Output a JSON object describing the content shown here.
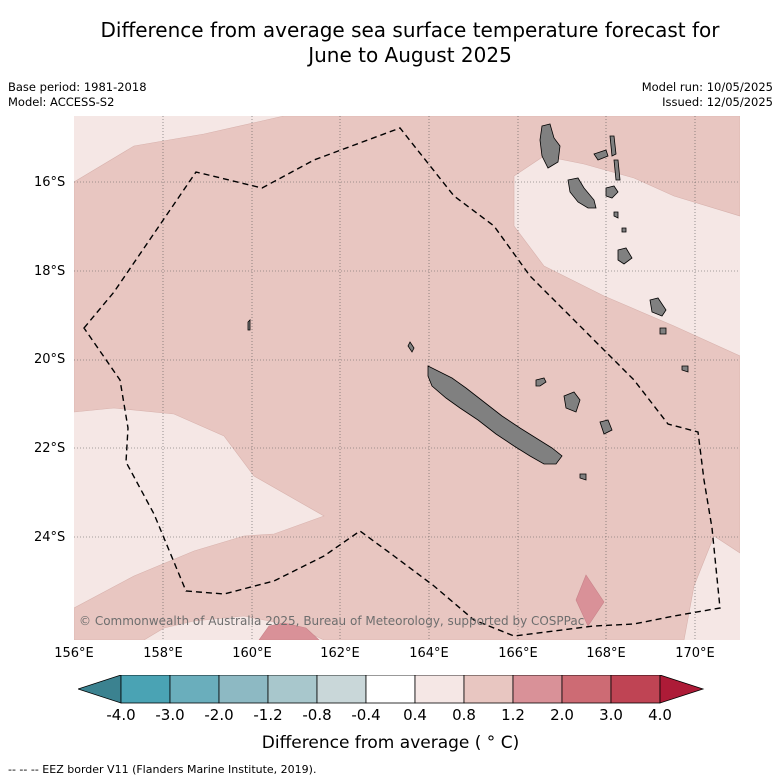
{
  "title_line1": "Difference from average sea surface temperature forecast for",
  "title_line2": "June to August 2025",
  "base_period": "Base period: 1981-2018",
  "model": "Model: ACCESS-S2",
  "model_run": "Model run: 10/05/2025",
  "issued": "Issued: 12/05/2025",
  "copyright": "© Commonwealth of Australia 2025, Bureau of Meteorology, supported by COSPPac",
  "lat_labels": [
    "16°S",
    "18°S",
    "20°S",
    "22°S",
    "24°S"
  ],
  "lon_labels": [
    "156°E",
    "158°E",
    "160°E",
    "162°E",
    "164°E",
    "166°E",
    "168°E",
    "170°E"
  ],
  "colorbar": {
    "ticks": [
      "-4.0",
      "-3.0",
      "-2.0",
      "-1.2",
      "-0.8",
      "-0.4",
      "0.4",
      "0.8",
      "1.2",
      "2.0",
      "3.0",
      "4.0"
    ],
    "colors": [
      "#4aa3b4",
      "#6aaebc",
      "#8db9c3",
      "#a8c7cc",
      "#c9d7d9",
      "#ffffff",
      "#f5e7e5",
      "#e8c6c1",
      "#d99198",
      "#cd6b74",
      "#bf4454"
    ],
    "under_color": "#3b8290",
    "over_color": "#ad1b37",
    "label": "Difference from average ($^\\circ$C)"
  },
  "colorbar_title": "Difference from average ( ° C)",
  "legend_footnote": "--  --  -- EEZ border V11 (Flanders Marine Institute, 2019).",
  "map_colors": {
    "light": "#f5e7e5",
    "medium": "#e8c6c1",
    "strong": "#d99198",
    "land": "#808080"
  }
}
